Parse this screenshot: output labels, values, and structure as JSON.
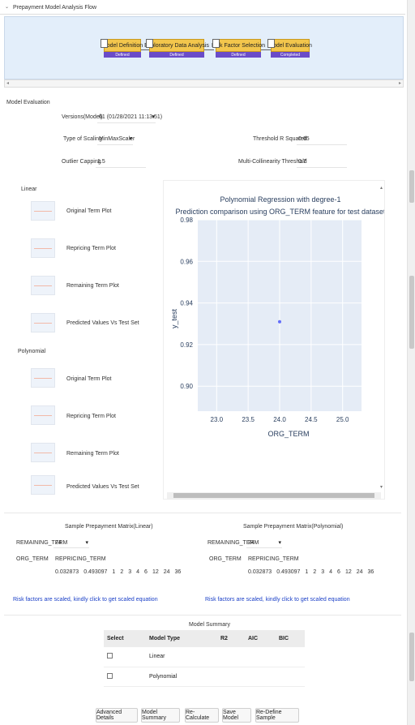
{
  "header": {
    "title": "Prepayment Model Analysis Flow"
  },
  "flow": {
    "nodes": [
      {
        "label": "Model Definition",
        "status": "Defined"
      },
      {
        "label": "Exploratory Data Analysis",
        "status": "Defined"
      },
      {
        "label": "Risk Factor Selection",
        "status": "Defined"
      },
      {
        "label": "Model Evaluation",
        "status": "Completed"
      }
    ]
  },
  "evaluation": {
    "title": "Model Evaluation",
    "versions_label": "Versions(Model)",
    "versions_value": "61 (01/28/2021 11:13:51)",
    "scaling_label": "Type of Scaling",
    "scaling_value": "MinMaxScaler",
    "outlier_label": "Outlier Capping",
    "outlier_value": "1.5",
    "threshold_label": "Threshold R Squared",
    "threshold_value": "0.65",
    "collinearity_label": "Multi-Collinearity Threshold",
    "collinearity_value": "0.7"
  },
  "plots": {
    "linear_heading": "Linear",
    "polynomial_heading": "Polynomial",
    "linear_items": [
      "Original Term Plot",
      "Repricing Term Plot",
      "Remaining Term Plot",
      "Predicted Values Vs Test Set"
    ],
    "polynomial_items": [
      "Original Term Plot",
      "Repricing Term Plot",
      "Remaining Term Plot",
      "Predicted Values Vs Test Set"
    ]
  },
  "chart_data": {
    "type": "scatter",
    "title": "Polynomial Regression with degree-1",
    "subtitle": "Prediction comparison using ORG_TERM feature for test dataset",
    "xlabel": "ORG_TERM",
    "ylabel": "y_test",
    "xlim": [
      22.7,
      25.3
    ],
    "ylim": [
      0.888,
      0.98
    ],
    "xticks": [
      "23.0",
      "23.5",
      "24.0",
      "24.5",
      "25.0"
    ],
    "yticks": [
      "0.98",
      "0.96",
      "0.94",
      "0.92",
      "0.90"
    ],
    "points": [
      {
        "x": 24.0,
        "y": 0.931
      }
    ],
    "grid": true,
    "colors": {
      "background": "#e5ecf6",
      "point": "#636efa"
    }
  },
  "matrix_linear": {
    "title": "Sample Prepayment Matrix(Linear)",
    "remaining_label": "REMAINING_TERM",
    "remaining_value": "24",
    "org_label": "ORG_TERM",
    "repricing_label": "REPRICING_TERM",
    "values": [
      "0.032873",
      "0.493097",
      "1",
      "2",
      "3",
      "4",
      "6",
      "12",
      "24",
      "36"
    ]
  },
  "matrix_poly": {
    "title": "Sample Prepayment Matrix(Polynomial)",
    "remaining_label": "REMAINING_TERM",
    "remaining_value": "24",
    "org_label": "ORG_TERM",
    "repricing_label": "REPRICING_TERM",
    "values": [
      "0.032873",
      "0.493097",
      "1",
      "2",
      "3",
      "4",
      "6",
      "12",
      "24",
      "36"
    ]
  },
  "links": {
    "linear": "Risk factors are scaled, kindly click to get scaled equation",
    "poly": "Risk factors are scaled, kindly click to get scaled equation"
  },
  "summary": {
    "title": "Model Summary",
    "columns": [
      "Select",
      "Model Type",
      "R2",
      "AIC",
      "BIC"
    ],
    "rows": [
      {
        "model_type": "Linear"
      },
      {
        "model_type": "Polynomial"
      }
    ]
  },
  "buttons": {
    "advanced": "Advanced Details",
    "summary": "Model Summary",
    "recalc": "Re-Calculate",
    "save": "Save Model",
    "redefine": "Re-Define Sample"
  },
  "colors": {
    "accent_link": "#1a3fc7",
    "node_fill": "#f3c64c",
    "node_status": "#6a4cc8"
  }
}
